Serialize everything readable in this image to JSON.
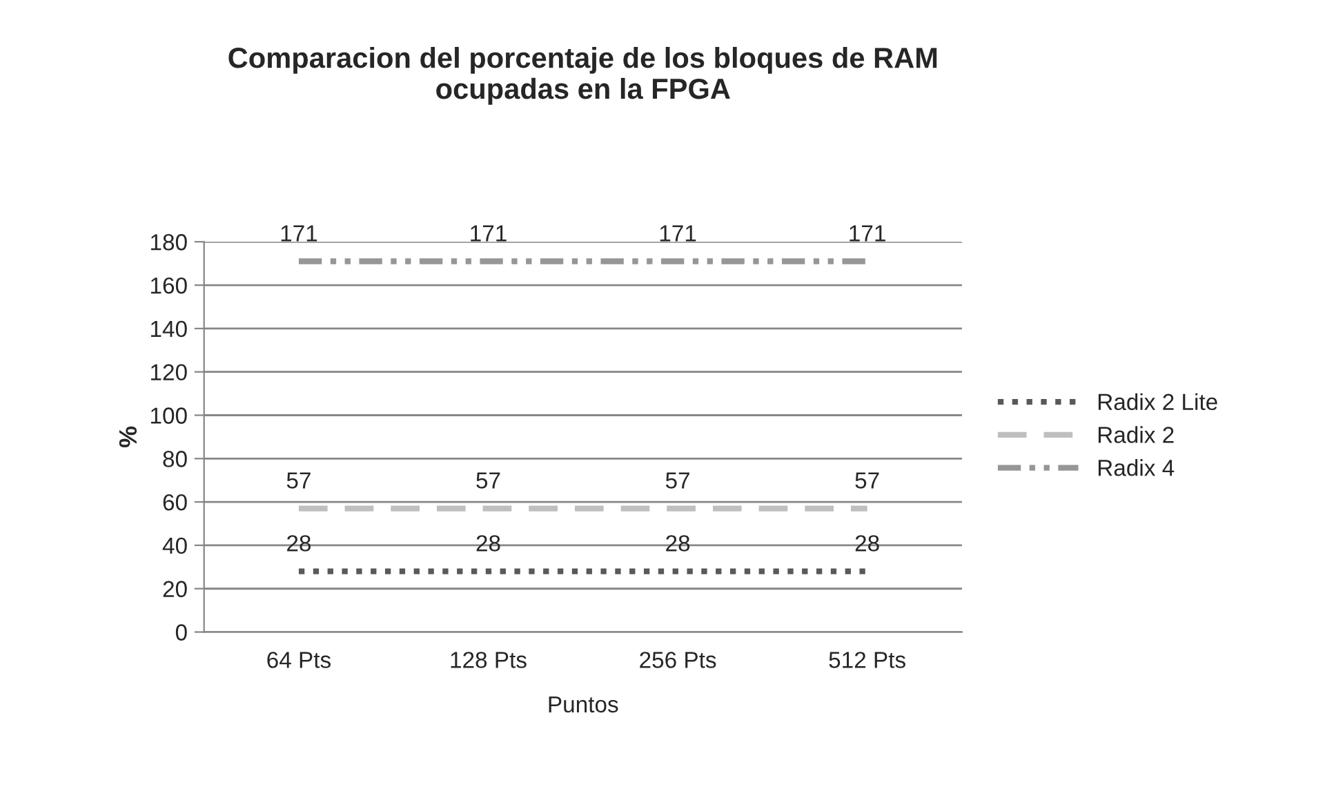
{
  "chart_data": {
    "type": "line",
    "title": "Comparacion del porcentaje de los bloques de RAM\nocupadas en la FPGA",
    "xlabel": "Puntos",
    "ylabel": "%",
    "categories": [
      "64 Pts",
      "128 Pts",
      "256 Pts",
      "512 Pts"
    ],
    "series": [
      {
        "name": "Radix 2 Lite",
        "color": "#595959",
        "line_style": "dotted",
        "values": [
          28,
          28,
          28,
          28
        ]
      },
      {
        "name": "Radix 2",
        "color": "#bfbfbf",
        "line_style": "dashed",
        "values": [
          57,
          57,
          57,
          57
        ]
      },
      {
        "name": "Radix 4",
        "color": "#969696",
        "line_style": "dashdotdot",
        "values": [
          171,
          171,
          171,
          171
        ]
      }
    ],
    "ylim": [
      0,
      180
    ],
    "yticks": [
      0,
      20,
      40,
      60,
      80,
      100,
      120,
      140,
      160,
      180
    ],
    "grid": "y",
    "legend": "right",
    "data_labels": true,
    "marker": "none"
  }
}
